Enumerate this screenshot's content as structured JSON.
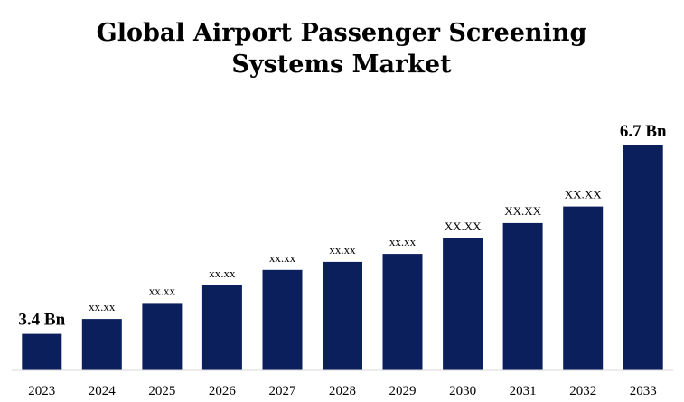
{
  "chart_data": {
    "type": "bar",
    "title": "Global  Airport Passenger Screening Systems Market",
    "title_lines": [
      "Global  Airport Passenger Screening",
      "Systems Market"
    ],
    "xlabel": "",
    "ylabel": "",
    "categories": [
      "2023",
      "2024",
      "2025",
      "2026",
      "2027",
      "2028",
      "2029",
      "2030",
      "2031",
      "2032",
      "2033"
    ],
    "values": [
      3.4,
      3.66,
      3.94,
      4.25,
      4.52,
      4.66,
      4.8,
      5.07,
      5.34,
      5.63,
      6.7
    ],
    "data_labels": [
      "3.4 Bn",
      "xx.xx",
      "xx.xx",
      "xx.xx",
      "xx.xx",
      "xx.xx",
      "xx.xx",
      "XX.XX",
      "XX.XX",
      "XX.XX",
      "6.7 Bn"
    ],
    "ylim": [
      2.76,
      6.7
    ],
    "grid": false,
    "legend": "none",
    "bar_color": "#0a1f5c"
  }
}
